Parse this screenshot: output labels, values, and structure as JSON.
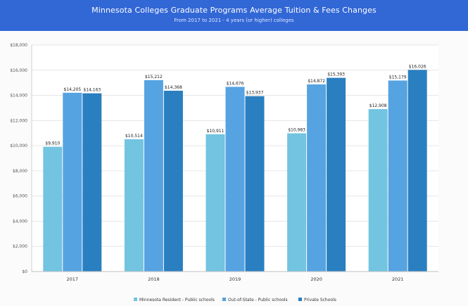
{
  "title": "Minnesota Colleges Graduate Programs Average Tuition & Fees Changes",
  "subtitle": "From 2017 to 2021 - 4 years (or higher) colleges",
  "chart_data": {
    "type": "bar",
    "title": "Minnesota Colleges Graduate Programs Average Tuition & Fees Changes",
    "subtitle": "From 2017 to 2021 - 4 years (or higher) colleges",
    "categories": [
      "2017",
      "2018",
      "2019",
      "2020",
      "2021"
    ],
    "series": [
      {
        "name": "Minnesota Resident - Public schools",
        "color": "#72c4e1",
        "values": [
          9910,
          10514,
          10911,
          10983,
          12908
        ],
        "labels": [
          "$9,910",
          "$10,514",
          "$10,911",
          "$10,983",
          "$12,908"
        ]
      },
      {
        "name": "Out-of-State - Public schools",
        "color": "#56a3e2",
        "values": [
          14205,
          15212,
          14676,
          14872,
          15179
        ],
        "labels": [
          "$14,205",
          "$15,212",
          "$14,676",
          "$14,872",
          "$15,179"
        ]
      },
      {
        "name": "Private Schools",
        "color": "#2a7fc0",
        "values": [
          14163,
          14368,
          13937,
          15393,
          16026
        ],
        "labels": [
          "$14,163",
          "$14,368",
          "$13,937",
          "$15,393",
          "$16,026"
        ]
      }
    ],
    "ylim": [
      0,
      18000
    ],
    "yticks": [
      0,
      2000,
      4000,
      6000,
      8000,
      10000,
      12000,
      14000,
      16000,
      18000
    ],
    "ytick_labels": [
      "$0",
      "$2,000",
      "$4,000",
      "$6,000",
      "$8,000",
      "$10,000",
      "$12,000",
      "$14,000",
      "$16,000",
      "$18,000"
    ],
    "xlabel": "",
    "ylabel": "",
    "grid": true,
    "legend": "bottom-center"
  }
}
